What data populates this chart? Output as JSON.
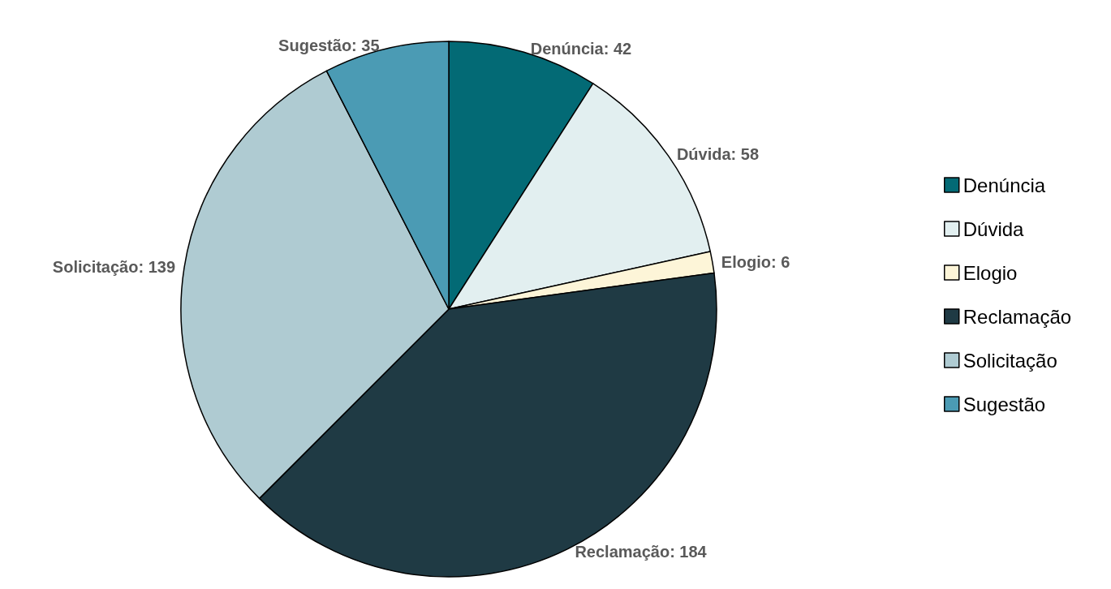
{
  "chart_data": {
    "type": "pie",
    "categories": [
      "Denúncia",
      "Dúvida",
      "Elogio",
      "Reclamação",
      "Solicitação",
      "Sugestão"
    ],
    "values": [
      42,
      58,
      6,
      184,
      139,
      35
    ],
    "colors": [
      "#036a75",
      "#e2eff0",
      "#fdf5d8",
      "#1f3a44",
      "#afcbd2",
      "#4b9bb4"
    ],
    "value_labels": [
      "Denúncia: 42",
      "Dúvida: 58",
      "Elogio: 6",
      "Reclamação: 184",
      "Solicitação: 139",
      "Sugestão: 35"
    ],
    "legend": "right"
  }
}
